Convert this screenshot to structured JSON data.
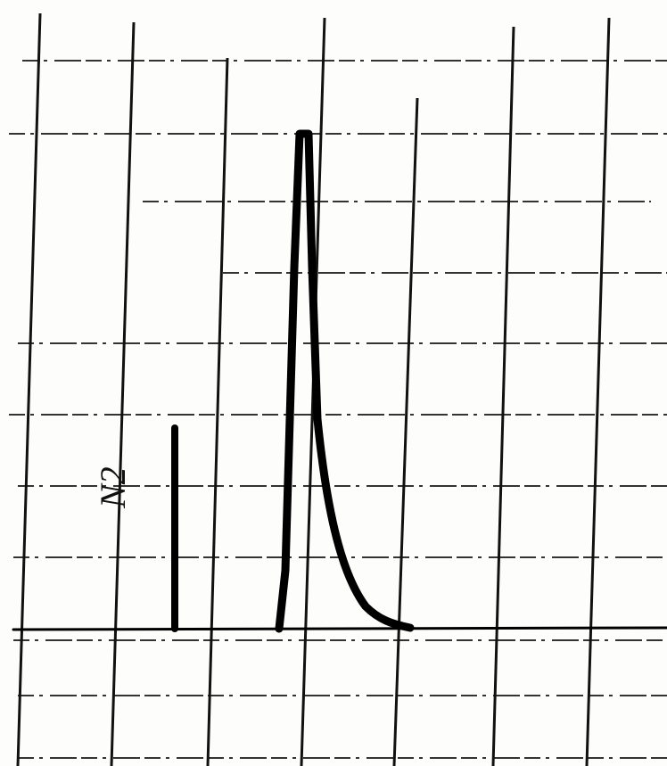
{
  "annotation": "N2"
}
